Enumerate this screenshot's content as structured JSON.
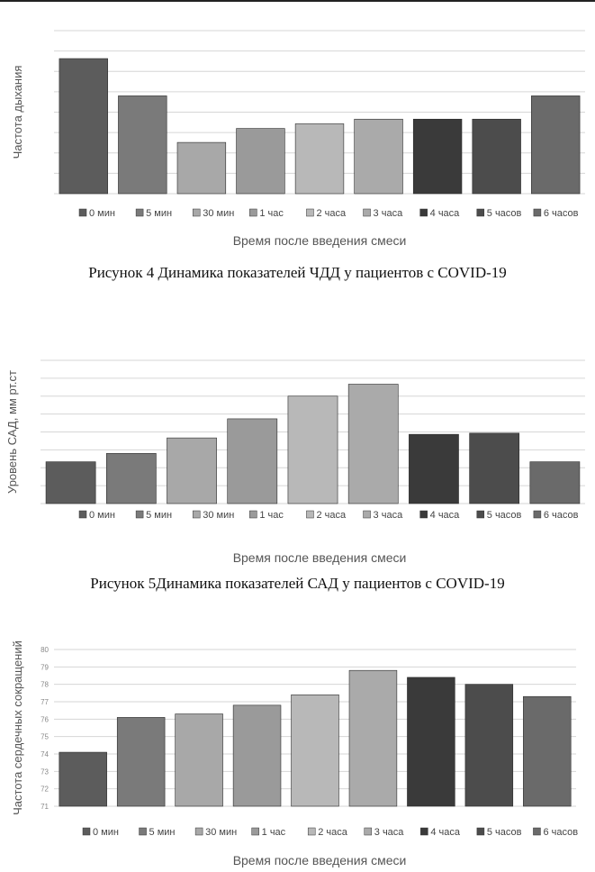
{
  "charts": [
    {
      "caption": "Рисунок 4 Динамика показателей ЧДД у пациентов с COVID-19",
      "chart_data": {
        "type": "bar",
        "categories": [
          "0 мин",
          "5 мин",
          "30 мин",
          "1 час",
          "2 часа",
          "3 часа",
          "4 часа",
          "5 часов",
          "6 часов"
        ],
        "values": [
          22.4,
          21.6,
          20.6,
          20.9,
          21.0,
          21.1,
          21.1,
          21.1,
          21.6
        ],
        "ylim": [
          19.5,
          23.0
        ],
        "ylabel": "Частота дыхания",
        "xlabel": "Время после введения смеси",
        "legend": "bottom",
        "grid": true
      }
    },
    {
      "caption": "Рисунок 5Динамика показателей САД у пациентов с COVID-19",
      "chart_data": {
        "type": "bar",
        "categories": [
          "0 мин",
          "5 мин",
          "30 мин",
          "1 час",
          "2 часа",
          "3 часа",
          "4 часа",
          "5 часов",
          "6 часов"
        ],
        "values": [
          125.5,
          126.2,
          127.5,
          129.1,
          131.0,
          132.0,
          127.8,
          127.9,
          125.5
        ],
        "ylim": [
          122,
          134
        ],
        "ylabel": "Уровень САД, мм рт.ст",
        "xlabel": "Время после введения смеси",
        "legend": "bottom",
        "grid": true
      }
    },
    {
      "caption": "",
      "chart_data": {
        "type": "bar",
        "categories": [
          "0 мин",
          "5 мин",
          "30 мин",
          "1 час",
          "2 часа",
          "3 часа",
          "4 часа",
          "5 часов",
          "6 часов"
        ],
        "values": [
          74.1,
          76.1,
          76.3,
          76.8,
          77.4,
          78.8,
          78.4,
          78.0,
          77.3
        ],
        "ylim": [
          71,
          80
        ],
        "yticks": [
          71,
          72,
          73,
          74,
          75,
          76,
          77,
          78,
          79,
          80
        ],
        "ylabel": "Частота сердечных сокращений",
        "xlabel": "Время после введения смеси",
        "legend": "bottom",
        "grid": true
      }
    }
  ],
  "colors": [
    "#5c5c5c",
    "#7a7a7a",
    "#a8a8a8",
    "#9a9a9a",
    "#b8b8b8",
    "#aaaaaa",
    "#3a3a3a",
    "#4c4c4c",
    "#6a6a6a"
  ]
}
